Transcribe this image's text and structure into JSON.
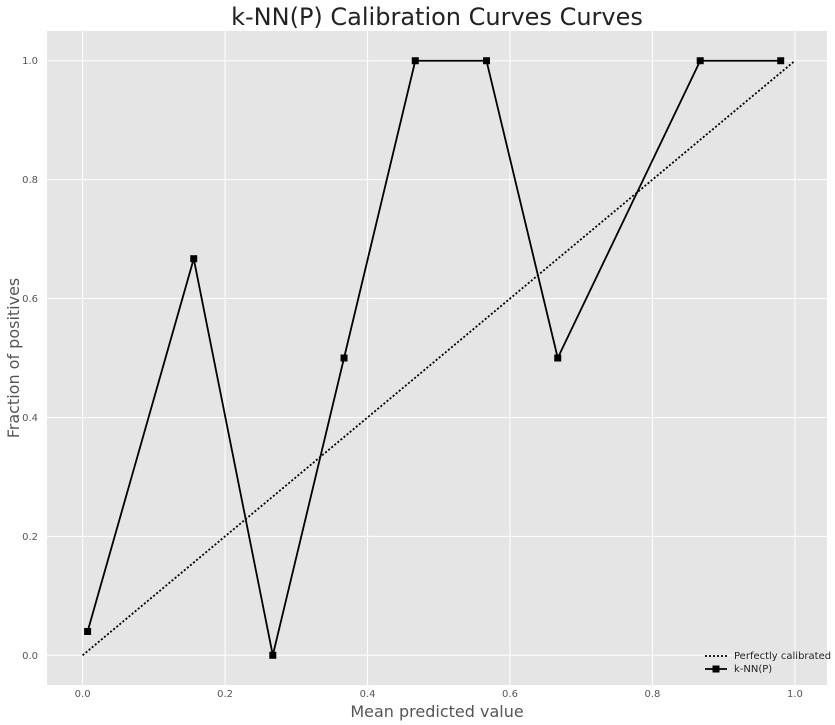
{
  "chart_data": {
    "type": "line",
    "title": "k-NN(P) Calibration Curves Curves",
    "xlabel": "Mean predicted value",
    "ylabel": "Fraction of positives",
    "xlim": [
      -0.05,
      1.045
    ],
    "ylim": [
      -0.05,
      1.05
    ],
    "xticks": [
      0.0,
      0.2,
      0.4,
      0.6,
      0.8,
      1.0
    ],
    "xtick_labels": [
      "0.0",
      "0.2",
      "0.4",
      "0.6",
      "0.8",
      "1.0"
    ],
    "yticks": [
      0.0,
      0.2,
      0.4,
      0.6,
      0.8,
      1.0
    ],
    "ytick_labels": [
      "0.0",
      "0.2",
      "0.4",
      "0.6",
      "0.8",
      "1.0"
    ],
    "grid": true,
    "legend_position": "bottom-right",
    "background_color": "#e5e5e5",
    "grid_color": "#ffffff",
    "series": [
      {
        "name": "Perfectly calibrated",
        "style": "dotted",
        "color": "#000000",
        "marker": "none",
        "x": [
          0.0,
          1.0
        ],
        "y": [
          0.0,
          1.0
        ]
      },
      {
        "name": "k-NN(P)",
        "style": "solid",
        "color": "#000000",
        "marker": "square",
        "x": [
          0.007,
          0.156,
          0.267,
          0.367,
          0.467,
          0.567,
          0.667,
          0.867,
          0.98
        ],
        "y": [
          0.04,
          0.667,
          0.0,
          0.5,
          1.0,
          1.0,
          0.5,
          1.0,
          1.0
        ]
      }
    ]
  }
}
